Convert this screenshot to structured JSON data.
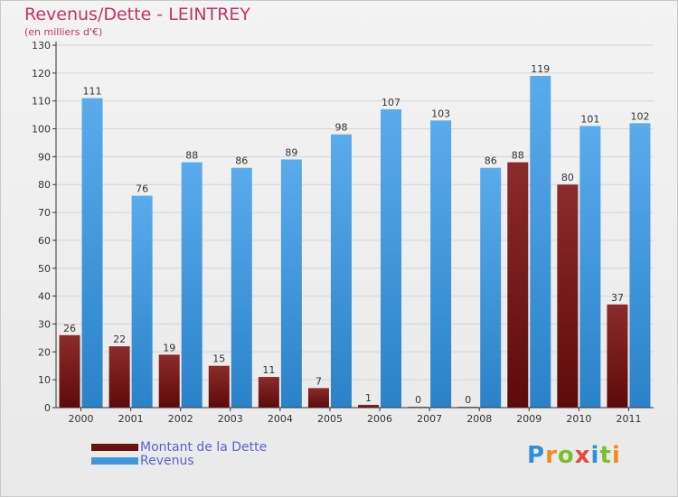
{
  "header": {
    "title": "Revenus/Dette - LEINTREY",
    "subtitle": "(en milliers d'€)"
  },
  "legend": {
    "items": [
      {
        "label": "Montant de la Dette",
        "color": "#6b0f0f"
      },
      {
        "label": "Revenus",
        "color": "#3d97dd"
      }
    ]
  },
  "logo": {
    "text": "Proxiti"
  },
  "colors": {
    "debt_top": "#8c2b2b",
    "debt_bottom": "#5e0a0a",
    "revenue_top": "#5aabec",
    "revenue_bottom": "#2a82c8",
    "title": "#c0336a",
    "grid": "#d4d4d4",
    "axis": "#333333"
  },
  "chart_data": {
    "type": "bar",
    "categories": [
      "2000",
      "2001",
      "2002",
      "2003",
      "2004",
      "2005",
      "2006",
      "2007",
      "2008",
      "2009",
      "2010",
      "2011"
    ],
    "series": [
      {
        "name": "Montant de la Dette",
        "values": [
          26,
          22,
          19,
          15,
          11,
          7,
          1,
          0,
          0,
          88,
          80,
          37
        ]
      },
      {
        "name": "Revenus",
        "values": [
          111,
          76,
          88,
          86,
          89,
          98,
          107,
          103,
          86,
          119,
          101,
          102
        ]
      }
    ],
    "yticks": [
      0,
      10,
      20,
      30,
      40,
      50,
      60,
      70,
      80,
      90,
      100,
      110,
      120,
      130
    ],
    "ylim": [
      0,
      130
    ],
    "grid": true,
    "legend_position": "bottom-left",
    "title": "Revenus/Dette - LEINTREY",
    "ylabel": "(en milliers d'€)"
  }
}
